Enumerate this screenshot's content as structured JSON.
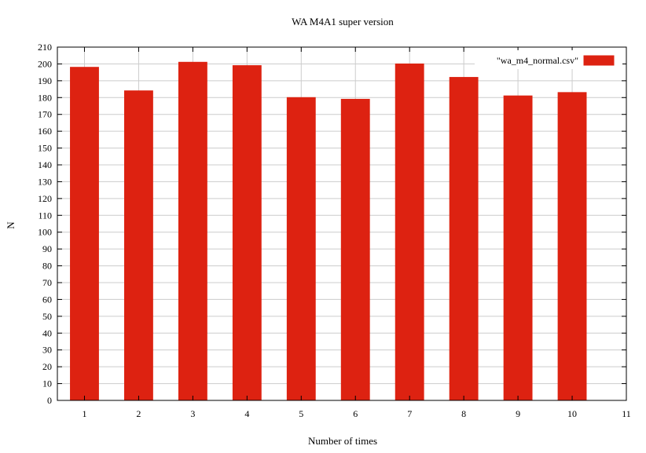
{
  "chart_data": {
    "type": "bar",
    "title": "WA M4A1 super version",
    "xlabel": "Number of times",
    "ylabel": "N",
    "categories": [
      "1",
      "2",
      "3",
      "4",
      "5",
      "6",
      "7",
      "8",
      "9",
      "10"
    ],
    "x_ticks": [
      "1",
      "2",
      "3",
      "4",
      "5",
      "6",
      "7",
      "8",
      "9",
      "10",
      "11"
    ],
    "xlim": [
      0.5,
      11
    ],
    "ylim": [
      0,
      210
    ],
    "y_tick_step": 10,
    "grid": true,
    "legend_position": "top-right",
    "series": [
      {
        "name": "\"wa_m4_normal.csv\"",
        "color": "#dd2211",
        "values": [
          198,
          184,
          201,
          199,
          180,
          179,
          200,
          192,
          181,
          183
        ]
      }
    ]
  }
}
